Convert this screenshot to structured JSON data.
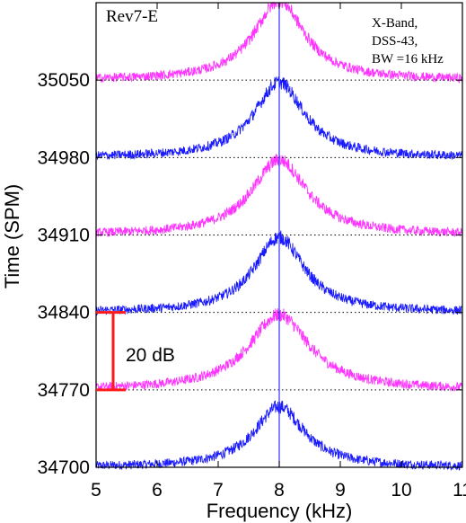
{
  "chart_data": {
    "type": "line",
    "title": "",
    "panel_label": "Rev7-E",
    "annotation_lines": [
      "X-Band,",
      "DSS-43,",
      "BW =16 kHz"
    ],
    "xlabel": "Frequency (kHz)",
    "ylabel": "Time (SPM)",
    "xlim": [
      5,
      11
    ],
    "x_ticks": [
      "5",
      "6",
      "7",
      "8",
      "9",
      "10",
      "11"
    ],
    "ylim": [
      34700,
      35120
    ],
    "y_ticks": [
      "34700",
      "34770",
      "34840",
      "34910",
      "34980",
      "35050"
    ],
    "y_tick_values": [
      34700,
      34770,
      34840,
      34910,
      34980,
      35050
    ],
    "scale_bar_label": "20 dB",
    "scale_bar_range": [
      34770,
      34840
    ],
    "center_line_x": 8.0,
    "grid": false,
    "dotted_baselines": true,
    "colors": {
      "magenta": "#ff33ff",
      "blue": "#1a1aff",
      "scale_bar": "#ff1a1a",
      "center_line": "#3333ff"
    },
    "series": [
      {
        "baseline": 34700,
        "color": "blue",
        "peak_x": 8.0,
        "peak_height": 55,
        "half_width": 0.5,
        "noise": 4
      },
      {
        "baseline": 34770,
        "color": "magenta",
        "peak_x": 8.0,
        "peak_height": 68,
        "half_width": 0.6,
        "noise": 4
      },
      {
        "baseline": 34840,
        "color": "blue",
        "peak_x": 8.0,
        "peak_height": 68,
        "half_width": 0.5,
        "noise": 4
      },
      {
        "baseline": 34910,
        "color": "magenta",
        "peak_x": 8.0,
        "peak_height": 68,
        "half_width": 0.55,
        "noise": 4
      },
      {
        "baseline": 34980,
        "color": "blue",
        "peak_x": 8.0,
        "peak_height": 68,
        "half_width": 0.5,
        "noise": 4
      },
      {
        "baseline": 35050,
        "color": "magenta",
        "peak_x": 8.0,
        "peak_height": 72,
        "half_width": 0.5,
        "noise": 4
      }
    ]
  }
}
